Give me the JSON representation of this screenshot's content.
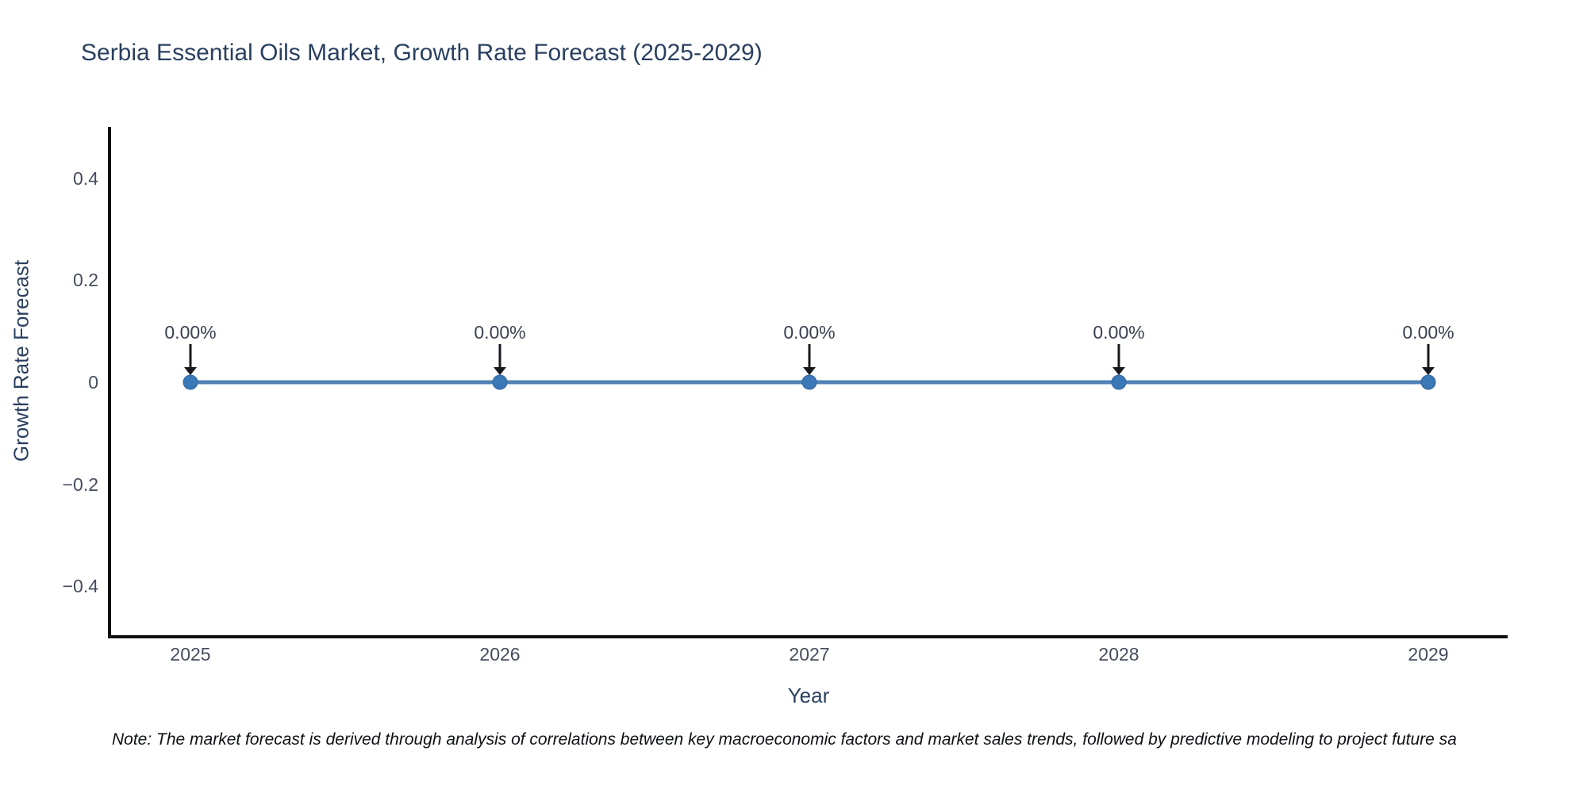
{
  "chart_data": {
    "type": "line",
    "title": "Serbia Essential Oils Market, Growth Rate Forecast (2025-2029)",
    "xlabel": "Year",
    "ylabel": "Growth Rate Forecast",
    "categories": [
      "2025",
      "2026",
      "2027",
      "2028",
      "2029"
    ],
    "series": [
      {
        "name": "Growth Rate Forecast",
        "values": [
          0,
          0,
          0,
          0,
          0
        ]
      }
    ],
    "point_labels": [
      "0.00%",
      "0.00%",
      "0.00%",
      "0.00%",
      "0.00%"
    ],
    "yticks": [
      0.4,
      0.2,
      0,
      -0.2,
      -0.4
    ],
    "ylim": [
      -0.5,
      0.5
    ],
    "grid": false,
    "legend_position": "none",
    "annotation_style": "value label above each point with downward black arrow",
    "note": "Note: The market forecast is derived through analysis of correlations between key macroeconomic factors and market sales trends, followed by predictive modeling to project future sa",
    "colors": {
      "line": "#4e81b4",
      "marker": "#3a78b8",
      "marker_edge": "#30659c",
      "spine": "#111111",
      "arrow": "#16181c",
      "title_text": "#2a3f5f",
      "tick_text": "#454c5c",
      "annotation_text": "#3a4150",
      "note_text": "#0f1115",
      "background": "#ffffff"
    }
  }
}
